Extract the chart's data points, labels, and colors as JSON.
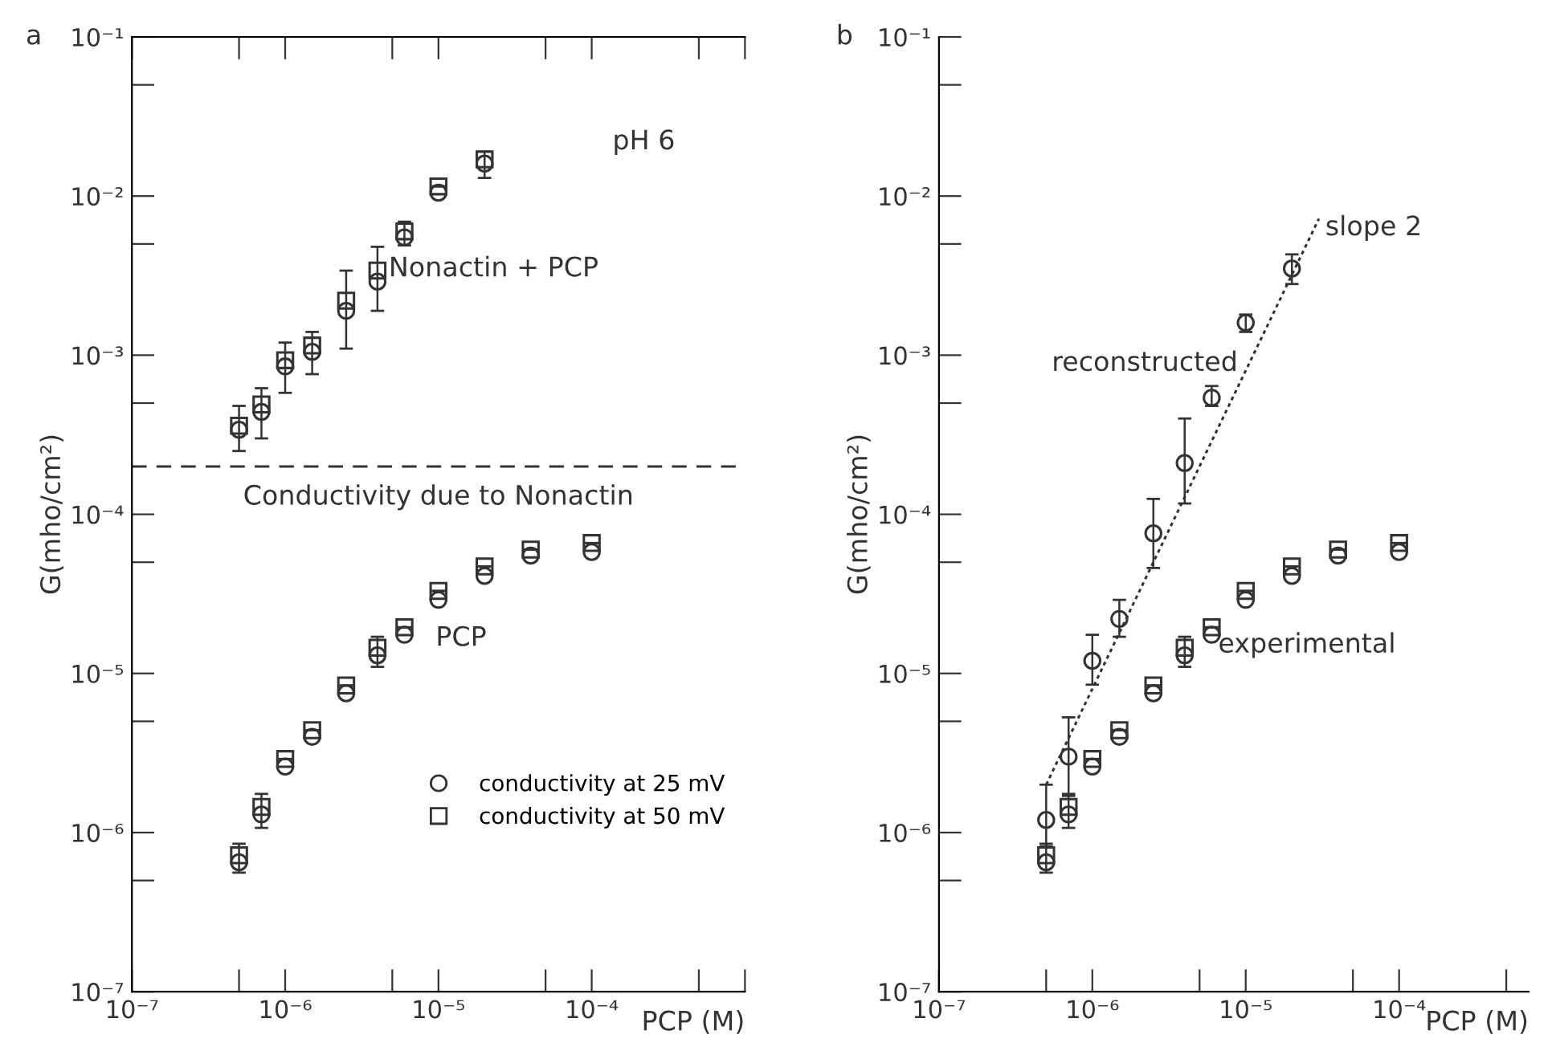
{
  "chart_data": [
    {
      "type": "scatter",
      "title": "a",
      "xlabel": "PCP (M)",
      "ylabel": "G(mho/cm²)",
      "log": "xy",
      "legend": "lower right",
      "grid": false,
      "xlim": [
        1e-07,
        0.001
      ],
      "ylim": [
        1e-07,
        0.1
      ],
      "xticks": [
        {
          "value": 1e-07,
          "label": "10⁻⁷"
        },
        {
          "value": 5e-07,
          "label": null
        },
        {
          "value": 1e-06,
          "label": "10⁻⁶"
        },
        {
          "value": 5e-06,
          "label": null
        },
        {
          "value": 1e-05,
          "label": "10⁻⁵"
        },
        {
          "value": 5e-05,
          "label": null
        },
        {
          "value": 0.0001,
          "label": "10⁻⁴"
        },
        {
          "value": 0.0005,
          "label": null
        },
        {
          "value": 0.001,
          "label": null
        }
      ],
      "yticks": [
        {
          "value": 1e-07,
          "label": "10⁻⁷"
        },
        {
          "value": 5e-07,
          "label": null
        },
        {
          "value": 1e-06,
          "label": "10⁻⁶"
        },
        {
          "value": 5e-06,
          "label": null
        },
        {
          "value": 1e-05,
          "label": "10⁻⁵"
        },
        {
          "value": 5e-05,
          "label": null
        },
        {
          "value": 0.0001,
          "label": "10⁻⁴"
        },
        {
          "value": 0.0005,
          "label": null
        },
        {
          "value": 0.001,
          "label": "10⁻³"
        },
        {
          "value": 0.005,
          "label": null
        },
        {
          "value": 0.01,
          "label": "10⁻²"
        },
        {
          "value": 0.05,
          "label": null
        },
        {
          "value": 0.1,
          "label": "10⁻¹"
        }
      ],
      "ref_lines": [
        {
          "axis": "y",
          "value": 0.0002,
          "label": "Conductivity due to Nonactin",
          "color": "#333333",
          "line_style": "dashed"
        }
      ],
      "annotations": [
        "pH 6",
        "Nonactin + PCP",
        "PCP"
      ],
      "series": [
        {
          "name": "conductivity at 25 mV",
          "marker": "circle",
          "color": "#333333",
          "x": [
            5e-07,
            7e-07,
            1e-06,
            1.5e-06,
            2.5e-06,
            4e-06,
            6e-06,
            1e-05,
            2e-05
          ],
          "values": [
            0.00034,
            0.00044,
            0.00085,
            0.00105,
            0.0019,
            0.0029,
            0.0055,
            0.0105,
            0.016
          ]
        },
        {
          "name": "conductivity at 50 mV",
          "marker": "square",
          "color": "#333333",
          "x": [
            5e-07,
            7e-07,
            1e-06,
            1.5e-06,
            2.5e-06,
            4e-06,
            6e-06,
            1e-05,
            2e-05
          ],
          "values": [
            0.00036,
            0.00049,
            0.00093,
            0.00115,
            0.0022,
            0.0034,
            0.006,
            0.0115,
            0.017
          ],
          "errors": [
            [
              0.00025,
              0.00048
            ],
            [
              0.0003,
              0.00062
            ],
            [
              0.00058,
              0.0012
            ],
            [
              0.00076,
              0.0014
            ],
            [
              0.0011,
              0.0034
            ],
            [
              0.0019,
              0.0048
            ],
            [
              0.0049,
              0.0069
            ],
            null,
            [
              0.013,
              0.019
            ]
          ]
        },
        {
          "marker": "circle",
          "color": "#333333",
          "x": [
            5e-07,
            7e-07,
            1e-06,
            1.5e-06,
            2.5e-06,
            4e-06,
            6e-06,
            1e-05,
            2e-05,
            4e-05,
            0.0001
          ],
          "values": [
            6.5e-07,
            1.3e-06,
            2.6e-06,
            4e-06,
            7.5e-06,
            1.3e-05,
            1.75e-05,
            2.9e-05,
            4.1e-05,
            5.5e-05,
            5.8e-05
          ]
        },
        {
          "marker": "square",
          "color": "#333333",
          "x": [
            5e-07,
            7e-07,
            1e-06,
            1.5e-06,
            2.5e-06,
            4e-06,
            6e-06,
            1e-05,
            2e-05,
            4e-05,
            0.0001
          ],
          "values": [
            7.2e-07,
            1.45e-06,
            2.9e-06,
            4.4e-06,
            8.4e-06,
            1.45e-05,
            1.95e-05,
            3.3e-05,
            4.7e-05,
            6e-05,
            6.6e-05
          ],
          "errors": [
            [
              5.6e-07,
              8.5e-07
            ],
            [
              1.07e-06,
              1.75e-06
            ],
            null,
            null,
            null,
            [
              1.1e-05,
              1.7e-05
            ],
            null,
            null,
            null,
            null,
            null
          ]
        }
      ]
    },
    {
      "type": "scatter",
      "title": "b",
      "xlabel": "PCP (M)",
      "ylabel": "G(mho/cm²)",
      "log": "xy",
      "grid": false,
      "xlim": [
        1e-07,
        0.0007
      ],
      "ylim": [
        1e-07,
        0.1
      ],
      "xticks": [
        {
          "value": 1e-07,
          "label": "10⁻⁷"
        },
        {
          "value": 5e-07,
          "label": null
        },
        {
          "value": 1e-06,
          "label": "10⁻⁶"
        },
        {
          "value": 5e-06,
          "label": null
        },
        {
          "value": 1e-05,
          "label": "10⁻⁵"
        },
        {
          "value": 5e-05,
          "label": null
        },
        {
          "value": 0.0001,
          "label": "10⁻⁴"
        },
        {
          "value": 0.0005,
          "label": null
        }
      ],
      "yticks": [
        {
          "value": 1e-07,
          "label": "10⁻⁷"
        },
        {
          "value": 5e-07,
          "label": null
        },
        {
          "value": 1e-06,
          "label": "10⁻⁶"
        },
        {
          "value": 5e-06,
          "label": null
        },
        {
          "value": 1e-05,
          "label": "10⁻⁵"
        },
        {
          "value": 5e-05,
          "label": null
        },
        {
          "value": 0.0001,
          "label": "10⁻⁴"
        },
        {
          "value": 0.0005,
          "label": null
        },
        {
          "value": 0.001,
          "label": "10⁻³"
        },
        {
          "value": 0.005,
          "label": null
        },
        {
          "value": 0.01,
          "label": "10⁻²"
        },
        {
          "value": 0.05,
          "label": null
        },
        {
          "value": 0.1,
          "label": "10⁻¹"
        }
      ],
      "annotations": [
        "slope 2",
        "reconstructed",
        "experimental"
      ],
      "series": [
        {
          "type": "line",
          "line_style": "dotted",
          "marker": "none",
          "color": "#333333",
          "x": [
            5e-07,
            3e-05
          ],
          "values": [
            2e-06,
            0.0072
          ]
        },
        {
          "marker": "circle",
          "color": "#333333",
          "x": [
            5e-07,
            7e-07,
            1e-06,
            1.5e-06,
            2.5e-06,
            4e-06,
            6e-06,
            1e-05,
            2e-05
          ],
          "values": [
            1.2e-06,
            3e-06,
            1.2e-05,
            2.2e-05,
            7.6e-05,
            0.00021,
            0.00054,
            0.0016,
            0.0035
          ],
          "errors": [
            [
              8.2e-07,
              2e-06
            ],
            [
              1.7e-06,
              5.3e-06
            ],
            [
              8.5e-06,
              1.75e-05
            ],
            [
              1.7e-05,
              2.9e-05
            ],
            [
              4.6e-05,
              0.000125
            ],
            [
              0.000117,
              0.0004
            ],
            [
              0.00048,
              0.00064
            ],
            [
              0.0014,
              0.0018
            ],
            [
              0.0028,
              0.0043
            ]
          ]
        },
        {
          "marker": "circle",
          "color": "#333333",
          "x": [
            5e-07,
            7e-07,
            1e-06,
            1.5e-06,
            2.5e-06,
            4e-06,
            6e-06,
            1e-05,
            2e-05,
            4e-05,
            0.0001
          ],
          "values": [
            6.5e-07,
            1.3e-06,
            2.6e-06,
            4e-06,
            7.5e-06,
            1.3e-05,
            1.75e-05,
            2.9e-05,
            4.1e-05,
            5.5e-05,
            5.8e-05
          ]
        },
        {
          "marker": "square",
          "color": "#333333",
          "x": [
            5e-07,
            7e-07,
            1e-06,
            1.5e-06,
            2.5e-06,
            4e-06,
            6e-06,
            1e-05,
            2e-05,
            4e-05,
            0.0001
          ],
          "values": [
            7.2e-07,
            1.45e-06,
            2.9e-06,
            4.4e-06,
            8.4e-06,
            1.45e-05,
            1.95e-05,
            3.3e-05,
            4.7e-05,
            6e-05,
            6.6e-05
          ],
          "errors": [
            [
              5.6e-07,
              8.5e-07
            ],
            [
              1.07e-06,
              1.75e-06
            ],
            null,
            null,
            null,
            [
              1.1e-05,
              1.7e-05
            ],
            null,
            null,
            null,
            null,
            null
          ]
        }
      ]
    }
  ]
}
